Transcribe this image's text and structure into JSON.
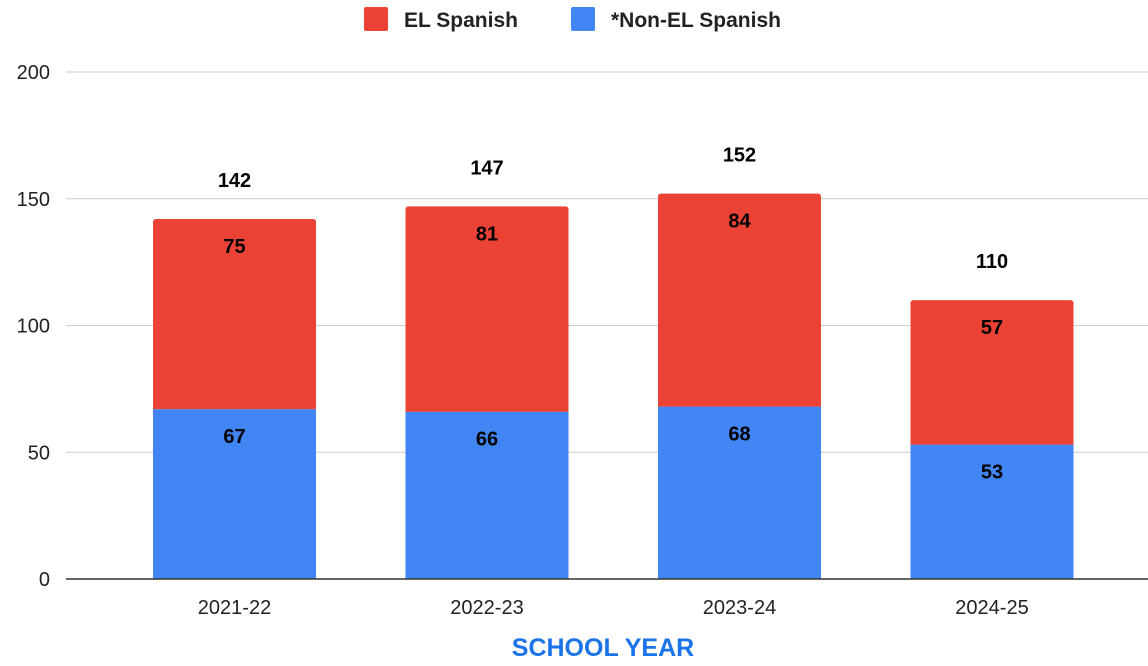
{
  "chart_data": {
    "type": "bar",
    "stacked": true,
    "categories": [
      "2021-22",
      "2022-23",
      "2023-24",
      "2024-25"
    ],
    "series": [
      {
        "name": "*Non-EL Spanish",
        "values": [
          67,
          66,
          68,
          53
        ],
        "color": "#4285f4"
      },
      {
        "name": "EL Spanish",
        "values": [
          75,
          81,
          84,
          57
        ],
        "color": "#ea4335"
      }
    ],
    "totals": [
      142,
      147,
      152,
      110
    ],
    "legend_order": [
      "EL Spanish",
      "*Non-EL Spanish"
    ],
    "legend_position": "top-center",
    "xlabel": "SCHOOL YEAR",
    "xlabel_color": "#1a73e8",
    "ylabel": "",
    "ylim": [
      0,
      200
    ],
    "yticks": [
      0,
      50,
      100,
      150,
      200
    ],
    "grid": true,
    "gridline_color": "#cccccc",
    "axis_color": "#333333"
  }
}
